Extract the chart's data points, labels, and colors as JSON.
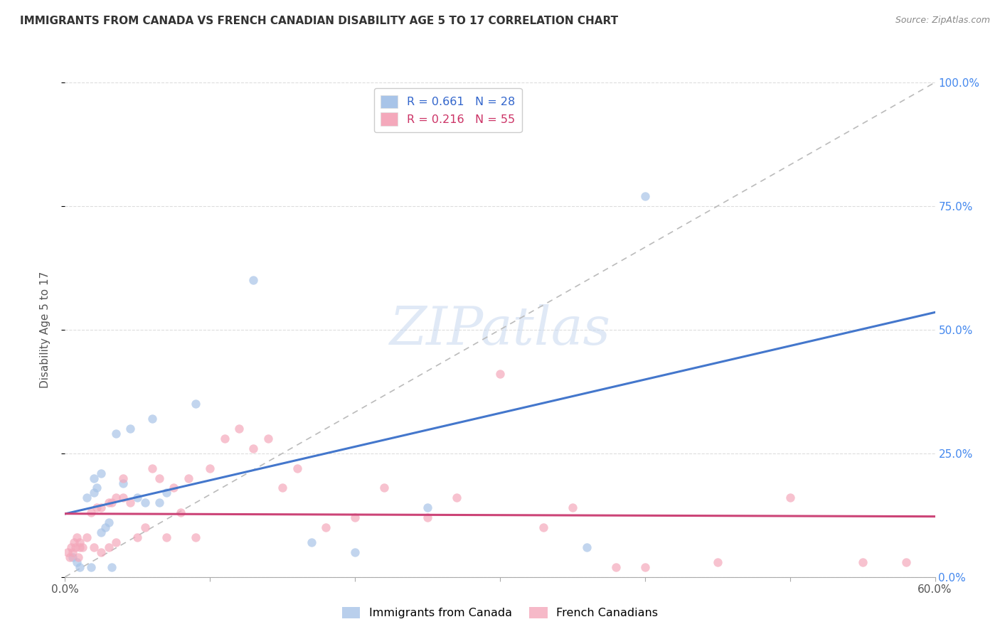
{
  "title": "IMMIGRANTS FROM CANADA VS FRENCH CANADIAN DISABILITY AGE 5 TO 17 CORRELATION CHART",
  "source": "Source: ZipAtlas.com",
  "ylabel_label": "Disability Age 5 to 17",
  "xlim": [
    0.0,
    0.6
  ],
  "ylim": [
    0.0,
    1.0
  ],
  "color_blue": "#a8c4e8",
  "color_pink": "#f4a8bb",
  "color_line_blue": "#4477cc",
  "color_line_pink": "#cc4477",
  "color_dashed": "#bbbbbb",
  "background": "#ffffff",
  "title_color": "#333333",
  "source_color": "#888888",
  "legend_text_color": "#3366cc",
  "legend_text_color2": "#cc3366",
  "blue_x": [
    0.005,
    0.008,
    0.01,
    0.015,
    0.018,
    0.02,
    0.02,
    0.022,
    0.025,
    0.025,
    0.028,
    0.03,
    0.032,
    0.035,
    0.04,
    0.045,
    0.05,
    0.055,
    0.06,
    0.065,
    0.07,
    0.09,
    0.13,
    0.17,
    0.2,
    0.25,
    0.36,
    0.4
  ],
  "blue_y": [
    0.04,
    0.03,
    0.02,
    0.16,
    0.02,
    0.17,
    0.2,
    0.18,
    0.21,
    0.09,
    0.1,
    0.11,
    0.02,
    0.29,
    0.19,
    0.3,
    0.16,
    0.15,
    0.32,
    0.15,
    0.17,
    0.35,
    0.6,
    0.07,
    0.05,
    0.14,
    0.06,
    0.77
  ],
  "pink_x": [
    0.002,
    0.003,
    0.004,
    0.005,
    0.006,
    0.007,
    0.008,
    0.009,
    0.01,
    0.01,
    0.012,
    0.015,
    0.018,
    0.02,
    0.022,
    0.025,
    0.025,
    0.03,
    0.03,
    0.032,
    0.035,
    0.035,
    0.04,
    0.04,
    0.045,
    0.05,
    0.055,
    0.06,
    0.065,
    0.07,
    0.075,
    0.08,
    0.085,
    0.09,
    0.1,
    0.11,
    0.12,
    0.13,
    0.14,
    0.15,
    0.16,
    0.18,
    0.2,
    0.22,
    0.25,
    0.27,
    0.3,
    0.33,
    0.35,
    0.38,
    0.4,
    0.45,
    0.5,
    0.55,
    0.58
  ],
  "pink_y": [
    0.05,
    0.04,
    0.06,
    0.05,
    0.07,
    0.06,
    0.08,
    0.04,
    0.07,
    0.06,
    0.06,
    0.08,
    0.13,
    0.06,
    0.14,
    0.05,
    0.14,
    0.15,
    0.06,
    0.15,
    0.16,
    0.07,
    0.16,
    0.2,
    0.15,
    0.08,
    0.1,
    0.22,
    0.2,
    0.08,
    0.18,
    0.13,
    0.2,
    0.08,
    0.22,
    0.28,
    0.3,
    0.26,
    0.28,
    0.18,
    0.22,
    0.1,
    0.12,
    0.18,
    0.12,
    0.16,
    0.41,
    0.1,
    0.14,
    0.02,
    0.02,
    0.03,
    0.16,
    0.03,
    0.03
  ]
}
